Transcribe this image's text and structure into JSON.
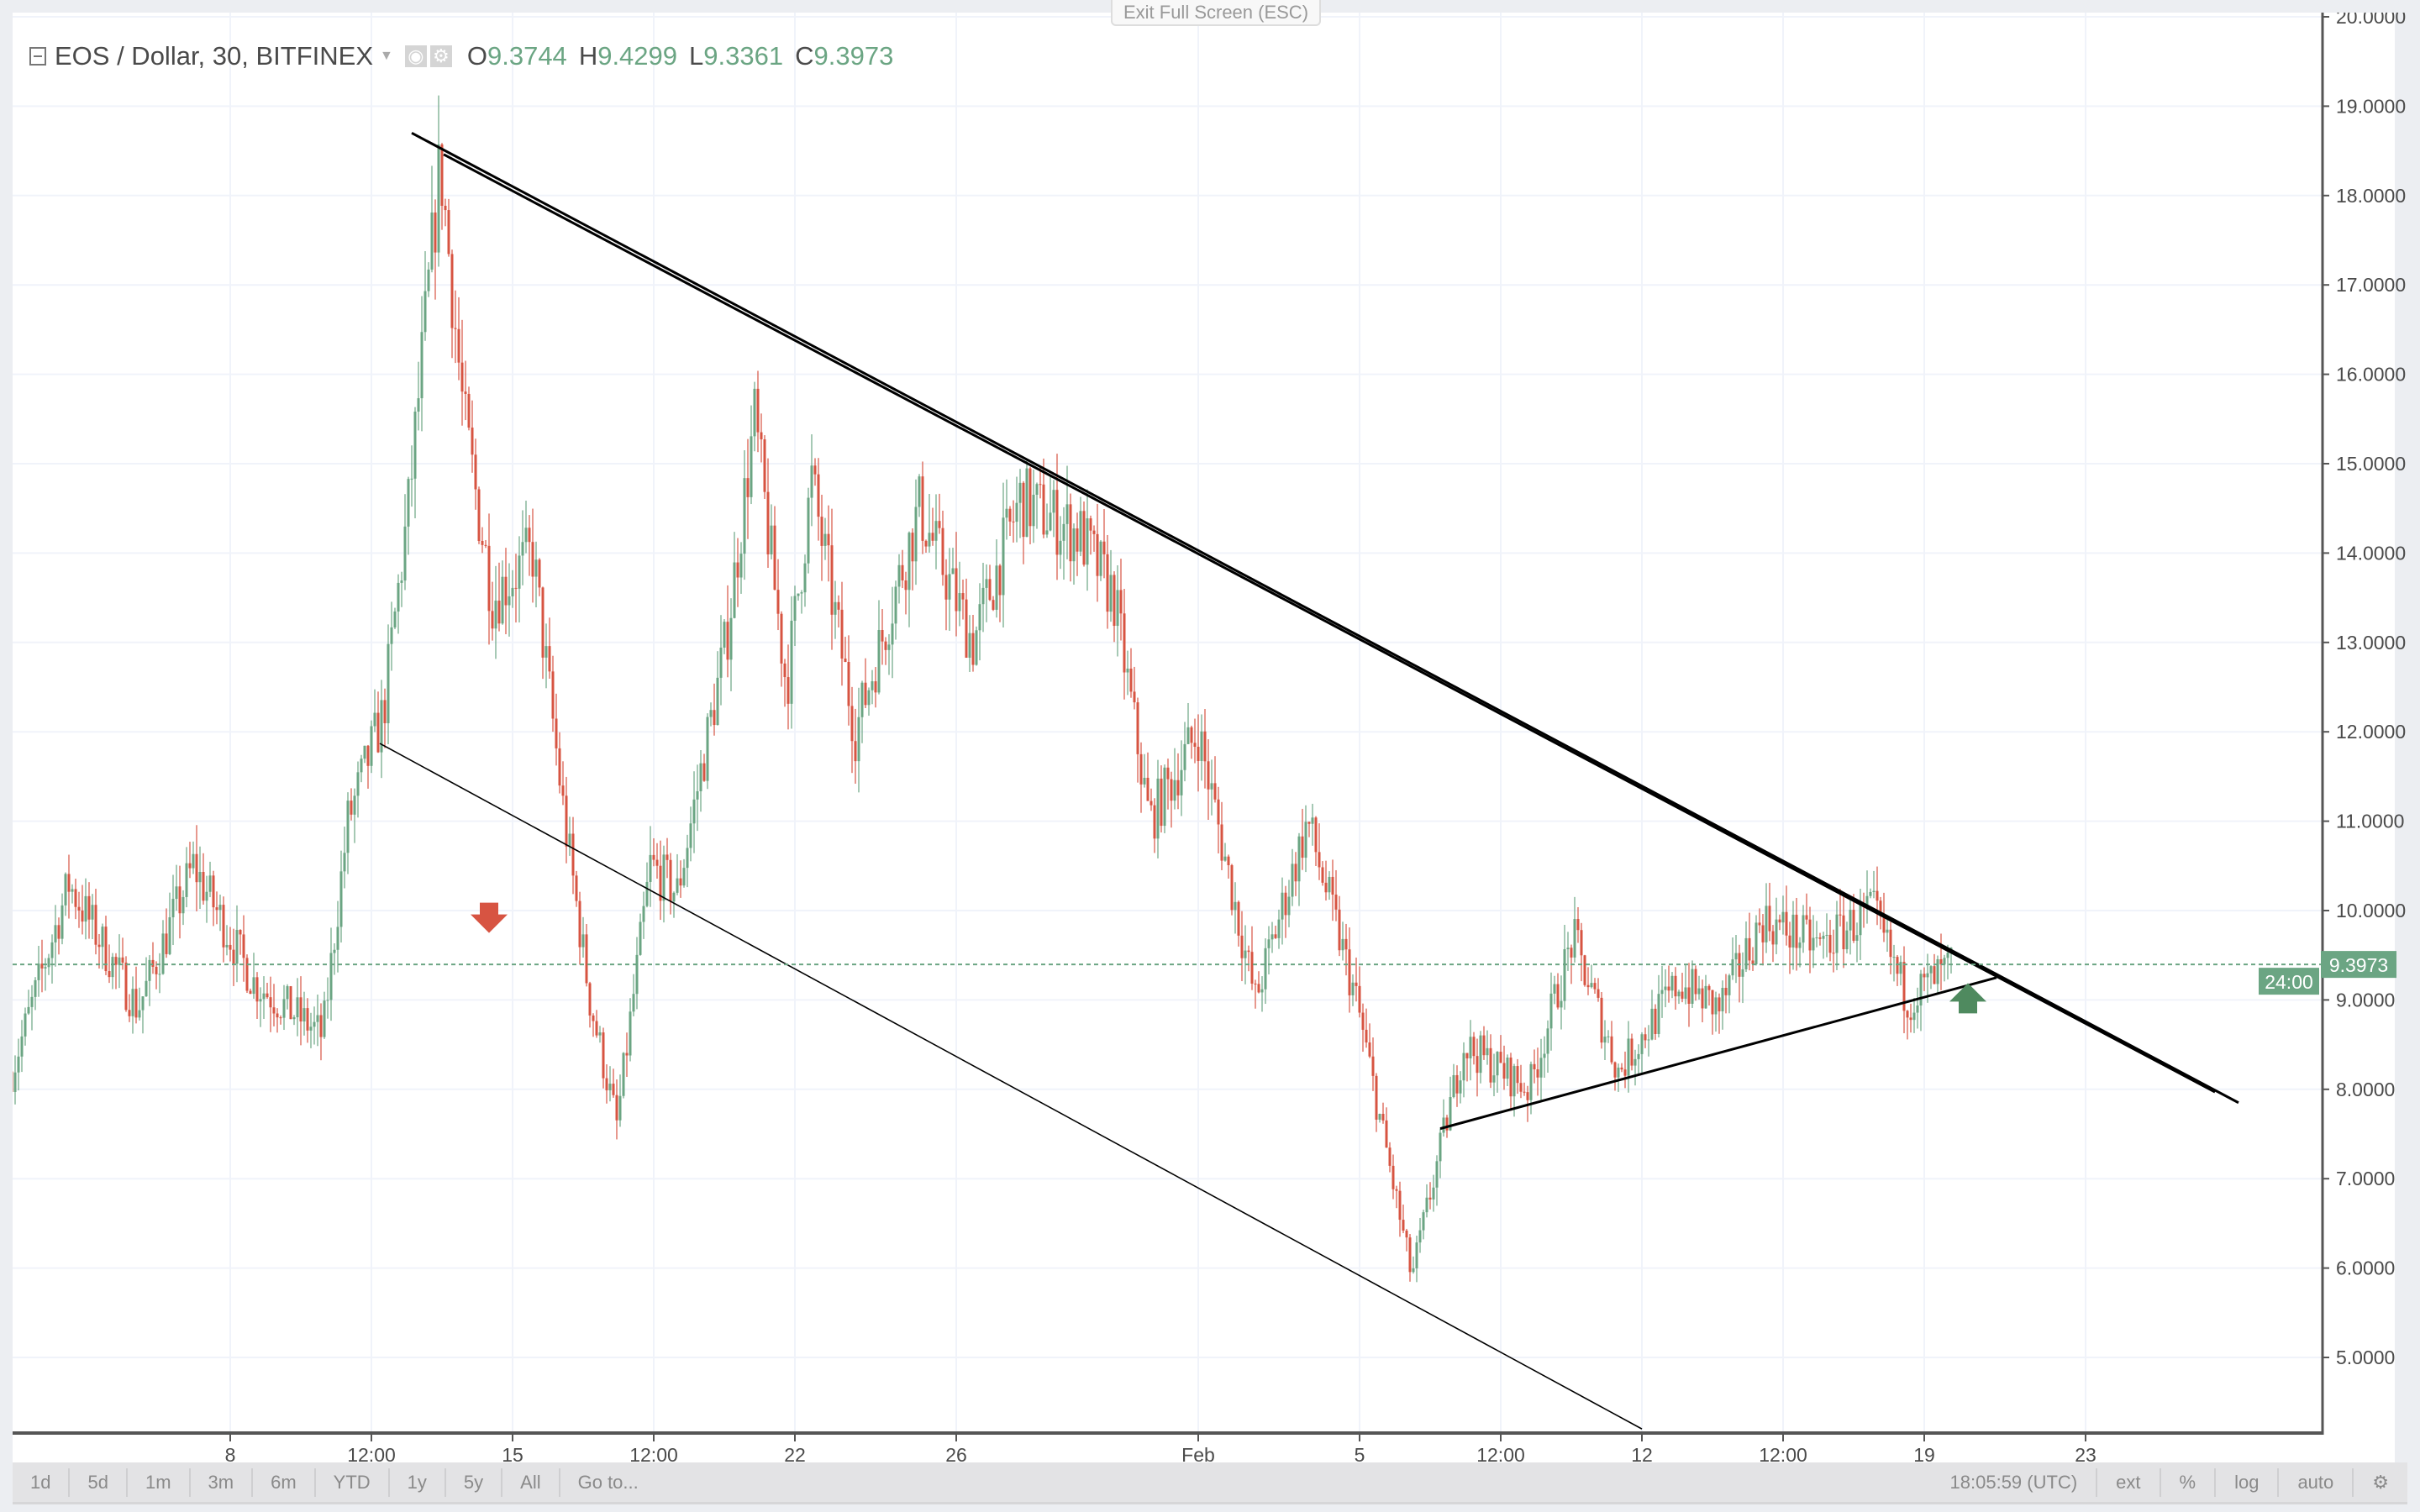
{
  "header": {
    "symbol": "EOS / Dollar, 30, BITFINEX",
    "ohlc": [
      {
        "key": "O",
        "value": "9.3744"
      },
      {
        "key": "H",
        "value": "9.4299"
      },
      {
        "key": "L",
        "value": "9.3361"
      },
      {
        "key": "C",
        "value": "9.3973"
      }
    ]
  },
  "exit_fullscreen_label": "Exit Full Screen (ESC)",
  "toolbar": {
    "ranges": [
      "1d",
      "5d",
      "1m",
      "3m",
      "6m",
      "YTD",
      "1y",
      "5y",
      "All",
      "Go to..."
    ],
    "clock": "18:05:59 (UTC)",
    "right": [
      "ext",
      "%",
      "log",
      "auto"
    ]
  },
  "colors": {
    "up": "#6ba583",
    "down": "#d75442",
    "last_price": "#6ba583",
    "trendline": "#000000"
  },
  "chart_data": {
    "type": "candlestick",
    "interval": "30",
    "y_axis": {
      "range": [
        4.2,
        20
      ],
      "ticks": [
        "20.0000",
        "19.0000",
        "18.0000",
        "17.0000",
        "16.0000",
        "15.0000",
        "14.0000",
        "13.0000",
        "12.0000",
        "11.0000",
        "10.0000",
        "9.0000",
        "8.0000",
        "7.0000",
        "6.0000",
        "5.0000"
      ]
    },
    "x_axis": {
      "ticks": [
        {
          "label": "8",
          "t": "Jan 8 00:00"
        },
        {
          "label": "12:00",
          "t": "Jan 11 12:00"
        },
        {
          "label": "15",
          "t": "Jan 15 00:00"
        },
        {
          "label": "12:00",
          "t": "Jan 18 12:00"
        },
        {
          "label": "22",
          "t": "Jan 22 00:00"
        },
        {
          "label": "26",
          "t": "Jan 26 00:00"
        },
        {
          "label": "Feb",
          "t": "Feb 1 00:00"
        },
        {
          "label": "5",
          "t": "Feb 5 00:00"
        },
        {
          "label": "12:00",
          "t": "Feb 8 12:00"
        },
        {
          "label": "12",
          "t": "Feb 12 00:00"
        },
        {
          "label": "12:00",
          "t": "Feb 15 12:00"
        },
        {
          "label": "19",
          "t": "Feb 19 00:00"
        },
        {
          "label": "23",
          "t": "Feb 23 00:00"
        }
      ]
    },
    "grid": true,
    "price_path": [
      {
        "t": "Jan 2 14:00",
        "p": 8.2
      },
      {
        "t": "Jan 4 00:00",
        "p": 10.3
      },
      {
        "t": "Jan 5 17:00",
        "p": 8.9
      },
      {
        "t": "Jan 7 02:00",
        "p": 10.5
      },
      {
        "t": "Jan 8 14:00",
        "p": 9.2
      },
      {
        "t": "Jan 10 07:00",
        "p": 8.6
      },
      {
        "t": "Jan 10 22:00",
        "p": 11.0
      },
      {
        "t": "Jan 11 19:00",
        "p": 12.2
      },
      {
        "t": "Jan 12 10:00",
        "p": 14.5
      },
      {
        "t": "Jan 13 05:00",
        "p": 18.4
      },
      {
        "t": "Jan 13 19:00",
        "p": 15.5
      },
      {
        "t": "Jan 14 12:00",
        "p": 13.5
      },
      {
        "t": "Jan 15 12:00",
        "p": 14.0
      },
      {
        "t": "Jan 16 07:00",
        "p": 11.0
      },
      {
        "t": "Jan 16 22:00",
        "p": 9.0
      },
      {
        "t": "Jan 17 14:00",
        "p": 7.6
      },
      {
        "t": "Jan 18 10:00",
        "p": 10.5
      },
      {
        "t": "Jan 19 02:00",
        "p": 10.2
      },
      {
        "t": "Jan 20 07:00",
        "p": 13.0
      },
      {
        "t": "Jan 21 00:00",
        "p": 15.5
      },
      {
        "t": "Jan 21 19:00",
        "p": 12.5
      },
      {
        "t": "Jan 22 10:00",
        "p": 14.8
      },
      {
        "t": "Jan 23 12:00",
        "p": 12.0
      },
      {
        "t": "Jan 25 02:00",
        "p": 14.5
      },
      {
        "t": "Jan 26 10:00",
        "p": 13.0
      },
      {
        "t": "Jan 27 14:00",
        "p": 14.6
      },
      {
        "t": "Jan 29 02:00",
        "p": 14.2
      },
      {
        "t": "Jan 29 22:00",
        "p": 13.5
      },
      {
        "t": "Jan 30 19:00",
        "p": 11.0
      },
      {
        "t": "Feb 1 00:00",
        "p": 12.0
      },
      {
        "t": "Feb 2 10:00",
        "p": 9.0
      },
      {
        "t": "Feb 3 17:00",
        "p": 11.0
      },
      {
        "t": "Feb 4 22:00",
        "p": 9.0
      },
      {
        "t": "Feb 6 07:00",
        "p": 5.9
      },
      {
        "t": "Feb 7 14:00",
        "p": 8.5
      },
      {
        "t": "Feb 9 05:00",
        "p": 8.0
      },
      {
        "t": "Feb 10 07:00",
        "p": 9.7
      },
      {
        "t": "Feb 11 10:00",
        "p": 8.2
      },
      {
        "t": "Feb 12 22:00",
        "p": 9.2
      },
      {
        "t": "Feb 13 22:00",
        "p": 8.9
      },
      {
        "t": "Feb 15 00:00",
        "p": 9.9
      },
      {
        "t": "Feb 16 10:00",
        "p": 9.6
      },
      {
        "t": "Feb 17 17:00",
        "p": 10.0
      },
      {
        "t": "Feb 18 14:00",
        "p": 9.0
      },
      {
        "t": "Feb 19 18:00",
        "p": 9.3973
      }
    ],
    "last_price": "9.3973",
    "countdown": "24:00",
    "trendlines": [
      {
        "from": {
          "t": "Jan 12 12:00",
          "p": 18.7
        },
        "to": {
          "t": "Feb 26 19:00",
          "p": 7.85
        },
        "width": 3
      },
      {
        "from": {
          "t": "Jan 13 07:00",
          "p": 18.46
        },
        "to": {
          "t": "Feb 26 05:00",
          "p": 7.97
        },
        "width": 3
      },
      {
        "from": {
          "t": "Jan 11 17:00",
          "p": 11.87
        },
        "to": {
          "t": "Feb 12 00:00",
          "p": 4.2
        },
        "width": 1.6
      },
      {
        "from": {
          "t": "Feb 7 00:00",
          "p": 7.56
        },
        "to": {
          "t": "Feb 20 19:00",
          "p": 9.25
        },
        "width": 3
      }
    ],
    "markers": [
      {
        "type": "arrow-down",
        "t": "Jan 14 10:00",
        "p": 9.9,
        "color": "#d75442"
      },
      {
        "type": "arrow-up",
        "t": "Feb 20 02:00",
        "p": 9.0,
        "color": "#4f8a5f"
      }
    ]
  }
}
